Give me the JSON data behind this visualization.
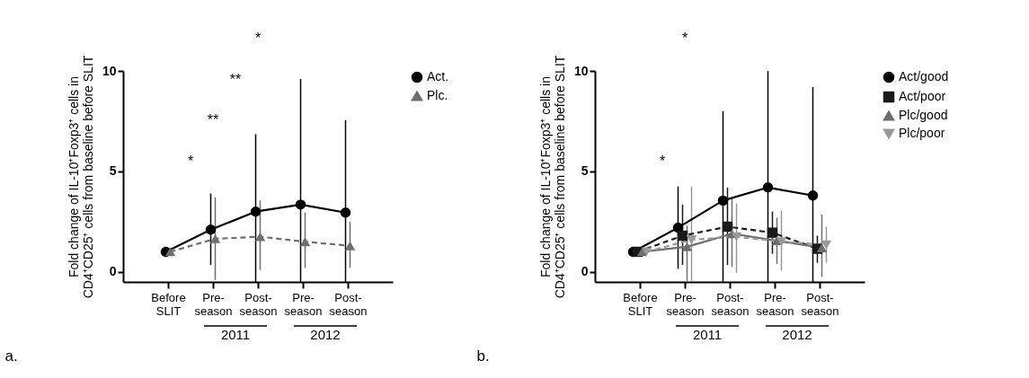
{
  "chart_data": [
    {
      "type": "line",
      "title": "a.",
      "ylabel": "Fold change of IL-10⁺Foxp3⁺ cells in CD4⁺CD25⁺ cells from baseline before SLIT",
      "categories": [
        "Before SLIT",
        "Pre-season",
        "Post-season",
        "Pre-season",
        "Post-season"
      ],
      "ylim": [
        -0.5,
        10
      ],
      "yticks": [
        0,
        5,
        10
      ],
      "legend": "top right",
      "grid": false,
      "annotations": [
        "*",
        "**",
        "**",
        "*",
        "2011",
        "2012"
      ],
      "series": [
        {
          "name": "Act.",
          "color": "#000000",
          "marker": "circle",
          "line_style": "solid",
          "values": [
            1.0,
            2.1,
            3.0,
            3.35,
            2.95
          ],
          "errors": [
            null,
            [
              0.35,
              3.9
            ],
            [
              -0.5,
              6.85
            ],
            [
              -0.5,
              9.6
            ],
            [
              -0.5,
              7.55
            ]
          ]
        },
        {
          "name": "Plc.",
          "color": "#6e6e6e",
          "marker": "triangle",
          "line_style": "dashed",
          "values": [
            1.0,
            1.65,
            1.75,
            1.5,
            1.3
          ],
          "errors": [
            null,
            [
              -0.4,
              3.7
            ],
            [
              0.1,
              3.55
            ],
            [
              0.2,
              2.95
            ],
            [
              0.2,
              2.5
            ]
          ]
        }
      ]
    },
    {
      "type": "line",
      "title": "b.",
      "ylabel": "Fold change of IL-10⁺Foxp3⁺ cells in CD4⁺CD25⁺ cells from baseline  before SLIT",
      "categories": [
        "Before SLIT",
        "Pre-season",
        "Post-season",
        "Pre-season",
        "Post-season"
      ],
      "ylim": [
        -0.5,
        10
      ],
      "yticks": [
        0,
        5,
        10
      ],
      "legend": "top right",
      "grid": false,
      "annotations": [
        "*",
        "*",
        "2011",
        "2012"
      ],
      "series": [
        {
          "name": "Act/good",
          "color": "#000000",
          "marker": "circle",
          "line_style": "solid",
          "values": [
            1.0,
            2.2,
            3.55,
            4.2,
            3.8
          ],
          "errors": [
            null,
            [
              0.15,
              4.25
            ],
            [
              -0.5,
              8.0
            ],
            [
              -0.5,
              10.0
            ],
            [
              -0.5,
              9.2
            ]
          ]
        },
        {
          "name": "Act/poor",
          "color": "#1a1a1a",
          "marker": "square",
          "line_style": "dashed",
          "values": [
            1.0,
            1.8,
            2.25,
            1.95,
            1.15
          ],
          "errors": [
            null,
            [
              0.35,
              3.35
            ],
            [
              0.35,
              4.2
            ],
            [
              0.9,
              3.0
            ],
            [
              0.45,
              1.8
            ]
          ]
        },
        {
          "name": "Plc/good",
          "color": "#6e6e6e",
          "marker": "triangle",
          "line_style": "solid",
          "values": [
            1.0,
            1.25,
            1.9,
            1.55,
            1.2
          ],
          "errors": [
            null,
            [
              -0.45,
              2.3
            ],
            [
              0.25,
              3.65
            ],
            [
              0.4,
              2.7
            ],
            [
              -0.25,
              2.85
            ]
          ]
        },
        {
          "name": "Plc/poor",
          "color": "#999999",
          "marker": "triangle-down",
          "line_style": "dashed",
          "values": [
            1.0,
            1.6,
            1.75,
            1.5,
            1.35
          ],
          "errors": [
            null,
            [
              -0.5,
              4.25
            ],
            [
              -0.05,
              3.4
            ],
            [
              0.05,
              3.05
            ],
            [
              0.45,
              2.25
            ]
          ]
        }
      ]
    }
  ]
}
